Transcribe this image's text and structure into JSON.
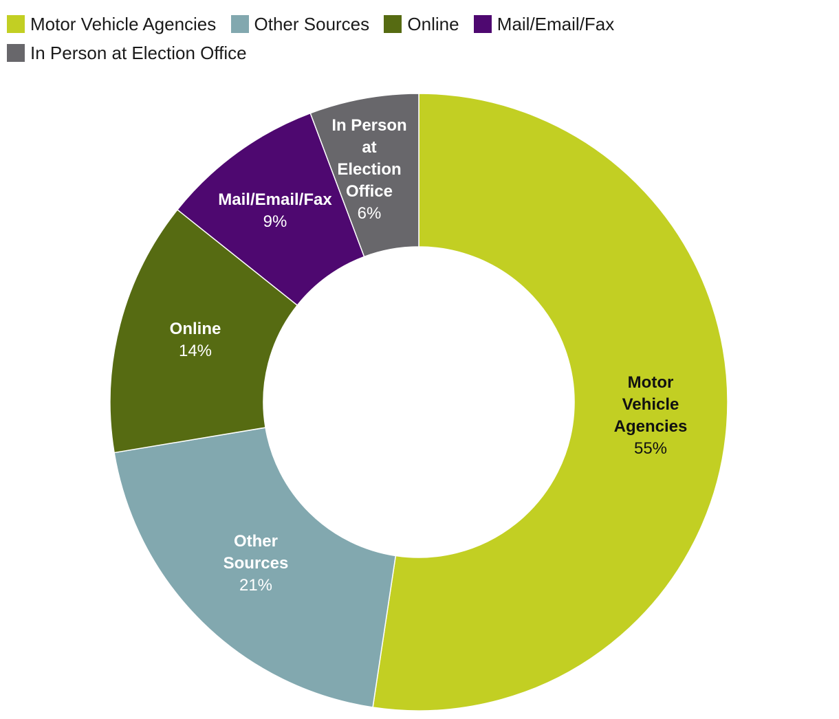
{
  "chart_data": {
    "type": "pie",
    "donut": true,
    "title": "",
    "legend_position": "top",
    "slices": [
      {
        "name": "Motor Vehicle Agencies",
        "value": 55,
        "value_label": "55%",
        "label_lines": [
          "Motor",
          "Vehicle",
          "Agencies"
        ],
        "color": "#c2cf23",
        "label_color": "#111111"
      },
      {
        "name": "Other Sources",
        "value": 21,
        "value_label": "21%",
        "label_lines": [
          "Other",
          "Sources"
        ],
        "color": "#82a8af",
        "label_color": "#ffffff"
      },
      {
        "name": "Online",
        "value": 14,
        "value_label": "14%",
        "label_lines": [
          "Online"
        ],
        "color": "#566b12",
        "label_color": "#ffffff"
      },
      {
        "name": "Mail/Email/Fax",
        "value": 9,
        "value_label": "9%",
        "label_lines": [
          "Mail/Email/Fax"
        ],
        "color": "#4e0870",
        "label_color": "#ffffff"
      },
      {
        "name": "In Person at Election Office",
        "value": 6,
        "value_label": "6%",
        "label_lines": [
          "In Person",
          "at",
          "Election",
          "Office"
        ],
        "color": "#68676b",
        "label_color": "#ffffff"
      }
    ]
  }
}
